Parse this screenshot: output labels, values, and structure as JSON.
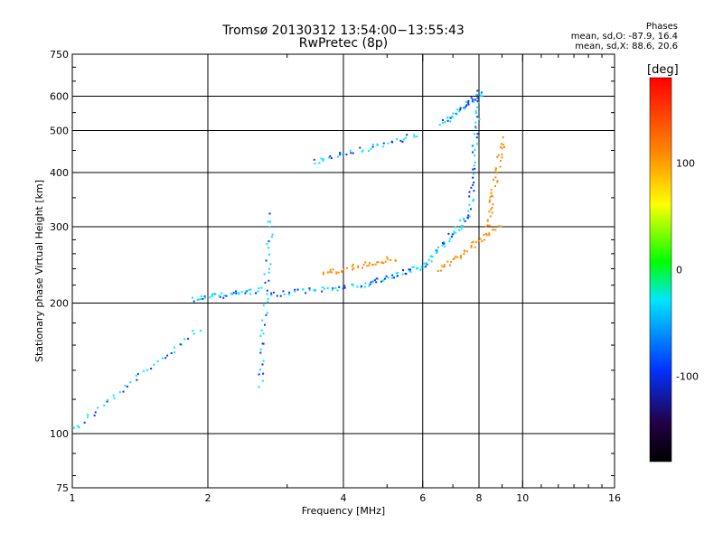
{
  "chart_data": {
    "type": "scatter",
    "title": "Tromsø 20130312 13:54:00−13:55:43",
    "subtitle": "RwPretec (8p)",
    "xlabel": "Frequency [MHz]",
    "ylabel": "Stationary phase Virtual Height [km]",
    "x_scale": "log",
    "y_scale": "log",
    "xlim": [
      1,
      16
    ],
    "ylim": [
      75,
      750
    ],
    "x_ticks": [
      1,
      2,
      4,
      6,
      8,
      10,
      16
    ],
    "y_ticks": [
      75,
      100,
      200,
      300,
      400,
      500,
      600,
      750
    ],
    "x_grid": [
      2,
      4,
      6,
      8,
      10
    ],
    "y_grid": [
      100,
      200,
      300,
      400,
      500,
      600
    ],
    "grid": true,
    "stats": {
      "title": "Phases",
      "o_line": "mean, sd,O: -87.9, 16.4",
      "x_line": "mean, sd,X: 88.6, 20.6"
    },
    "colorbar": {
      "label": "[deg]",
      "range": [
        -180,
        180
      ],
      "ticks": [
        100,
        0,
        -100
      ],
      "position": "right"
    },
    "series": [
      {
        "name": "O",
        "color_value": -90,
        "segments": [
          {
            "x_range": [
              1.0,
              1.9
            ],
            "y_range": [
              103,
              175
            ]
          },
          {
            "x_range": [
              1.85,
              2.6
            ],
            "y_range": [
              205,
              215
            ]
          },
          {
            "x_range": [
              2.6,
              2.75
            ],
            "y_range": [
              130,
              320
            ]
          },
          {
            "x_range": [
              2.75,
              4.5
            ],
            "y_range": [
              210,
              222
            ]
          },
          {
            "x_range": [
              4.5,
              6.0
            ],
            "y_range": [
              222,
              245
            ]
          },
          {
            "x_range": [
              6.0,
              7.6
            ],
            "y_range": [
              245,
              320
            ]
          },
          {
            "x_range": [
              7.6,
              8.0
            ],
            "y_range": [
              320,
              620
            ]
          },
          {
            "x_range": [
              3.4,
              5.8
            ],
            "y_range": [
              425,
              490
            ]
          },
          {
            "x_range": [
              6.6,
              8.0
            ],
            "y_range": [
              520,
              610
            ]
          }
        ]
      },
      {
        "name": "X",
        "color_value": 88,
        "segments": [
          {
            "x_range": [
              6.5,
              8.8
            ],
            "y_range": [
              240,
              300
            ]
          },
          {
            "x_range": [
              8.3,
              9.0
            ],
            "y_range": [
              300,
              480
            ]
          },
          {
            "x_range": [
              3.6,
              5.2
            ],
            "y_range": [
              235,
              255
            ]
          }
        ]
      }
    ]
  }
}
